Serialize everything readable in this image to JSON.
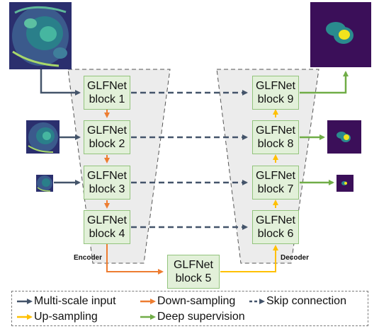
{
  "encoder": {
    "label": "Encoder"
  },
  "decoder": {
    "label": "Decoder"
  },
  "blocks": [
    {
      "line1": "GLFNet",
      "line2": "block 1"
    },
    {
      "line1": "GLFNet",
      "line2": "block 2"
    },
    {
      "line1": "GLFNet",
      "line2": "block 3"
    },
    {
      "line1": "GLFNet",
      "line2": "block 4"
    },
    {
      "line1": "GLFNet",
      "line2": "block 5"
    },
    {
      "line1": "GLFNet",
      "line2": "block 6"
    },
    {
      "line1": "GLFNet",
      "line2": "block 7"
    },
    {
      "line1": "GLFNet",
      "line2": "block 8"
    },
    {
      "line1": "GLFNet",
      "line2": "block 9"
    }
  ],
  "legend": {
    "items": [
      {
        "label": "Multi-scale input",
        "color": "#44546a",
        "style": "solid"
      },
      {
        "label": "Down-sampling",
        "color": "#ed7d31",
        "style": "solid"
      },
      {
        "label": "Skip connection",
        "color": "#44546a",
        "style": "dashed"
      },
      {
        "label": "Up-sampling",
        "color": "#ffc000",
        "style": "solid"
      },
      {
        "label": "Deep supervision",
        "color": "#70ad47",
        "style": "solid"
      }
    ]
  },
  "colors": {
    "multi_scale": "#44546a",
    "down": "#ed7d31",
    "skip": "#44546a",
    "up": "#ffc000",
    "deep": "#70ad47",
    "block_fill": "#e2f0d9",
    "block_border": "#93c47d",
    "trapezoid_fill": "#ececec"
  }
}
